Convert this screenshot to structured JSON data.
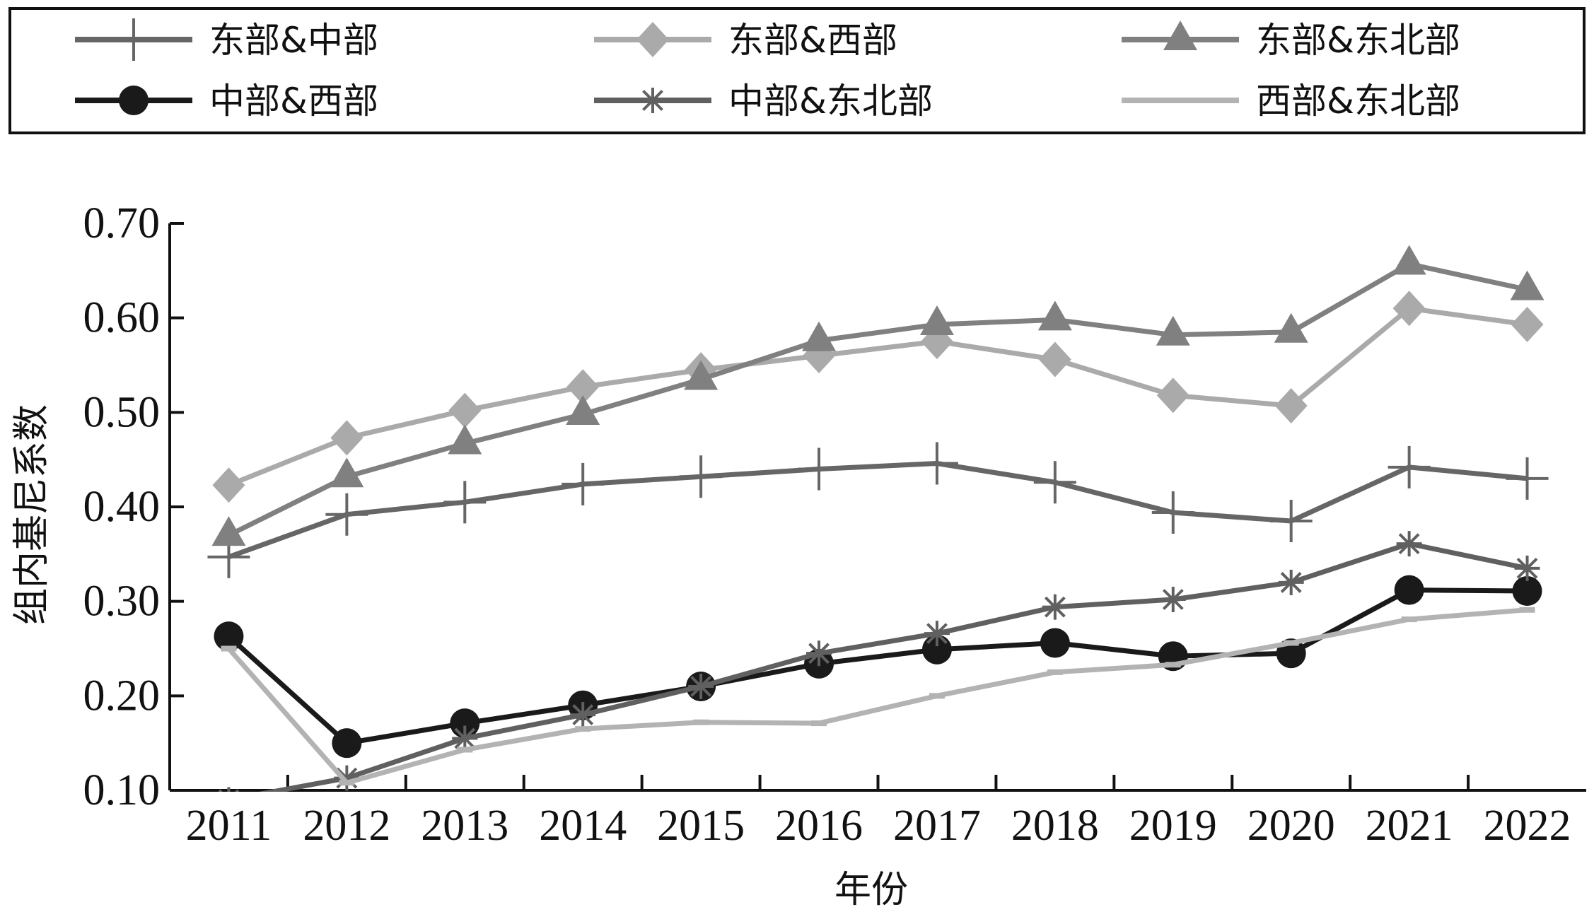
{
  "chart_data": {
    "type": "line",
    "title": "",
    "xlabel": "年份",
    "ylabel": "组内基尼系数",
    "categories": [
      "2011",
      "2012",
      "2013",
      "2014",
      "2015",
      "2016",
      "2017",
      "2018",
      "2019",
      "2020",
      "2021",
      "2022"
    ],
    "y_ticks": [
      "0.10",
      "0.20",
      "0.30",
      "0.40",
      "0.50",
      "0.60",
      "0.70"
    ],
    "ylim": [
      0.1,
      0.7
    ],
    "grid": false,
    "legend_position": "top (boxed, 3 columns)",
    "series": [
      {
        "name": "东部&中部",
        "marker": "plus",
        "color": "#666666",
        "values": [
          0.347,
          0.392,
          0.405,
          0.424,
          0.432,
          0.44,
          0.446,
          0.426,
          0.394,
          0.385,
          0.442,
          0.43
        ]
      },
      {
        "name": "东部&西部",
        "marker": "diamond",
        "color": "#aaaaaa",
        "values": [
          0.423,
          0.473,
          0.502,
          0.527,
          0.545,
          0.56,
          0.575,
          0.556,
          0.518,
          0.507,
          0.61,
          0.593
        ]
      },
      {
        "name": "东部&东北部",
        "marker": "triangle",
        "color": "#808080",
        "values": [
          0.37,
          0.432,
          0.467,
          0.498,
          0.535,
          0.576,
          0.593,
          0.598,
          0.582,
          0.585,
          0.657,
          0.63
        ]
      },
      {
        "name": "中部&西部",
        "marker": "circle",
        "color": "#1a1a1a",
        "values": [
          0.263,
          0.15,
          0.171,
          0.19,
          0.21,
          0.234,
          0.249,
          0.256,
          0.242,
          0.245,
          0.312,
          0.311
        ]
      },
      {
        "name": "中部&东北部",
        "marker": "asterisk",
        "color": "#606060",
        "values": [
          0.09,
          0.113,
          0.155,
          0.18,
          0.21,
          0.245,
          0.266,
          0.294,
          0.302,
          0.32,
          0.361,
          0.335
        ]
      },
      {
        "name": "西部&东北部",
        "marker": "dash",
        "color": "#b3b3b3",
        "values": [
          0.25,
          0.108,
          0.143,
          0.165,
          0.172,
          0.171,
          0.2,
          0.225,
          0.233,
          0.256,
          0.281,
          0.291
        ]
      }
    ]
  }
}
